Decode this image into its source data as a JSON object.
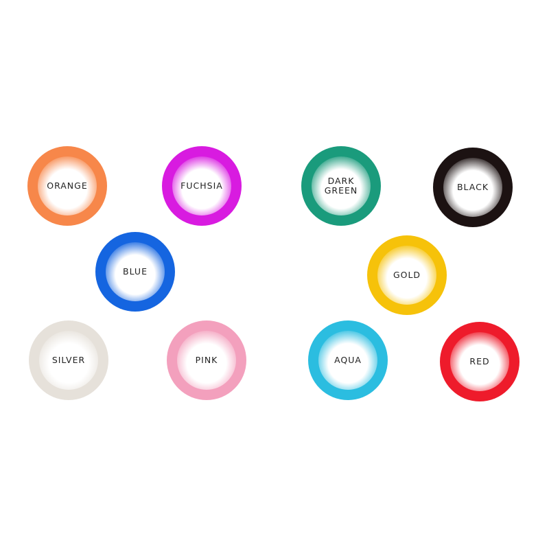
{
  "swatches": [
    {
      "label": "ORANGE",
      "color": "#f7874a"
    },
    {
      "label": "FUCHSIA",
      "color": "#d81be0"
    },
    {
      "label": "DARK GREEN",
      "color": "#1a9b7c"
    },
    {
      "label": "BLACK",
      "color": "#1c1212"
    },
    {
      "label": "BLUE",
      "color": "#1565e0"
    },
    {
      "label": "GOLD",
      "color": "#f6c20a"
    },
    {
      "label": "SILVER",
      "color": "#e6e1da"
    },
    {
      "label": "PINK",
      "color": "#f3a0bd"
    },
    {
      "label": "AQUA",
      "color": "#2bbde0"
    },
    {
      "label": "RED",
      "color": "#ee1b2b"
    }
  ]
}
